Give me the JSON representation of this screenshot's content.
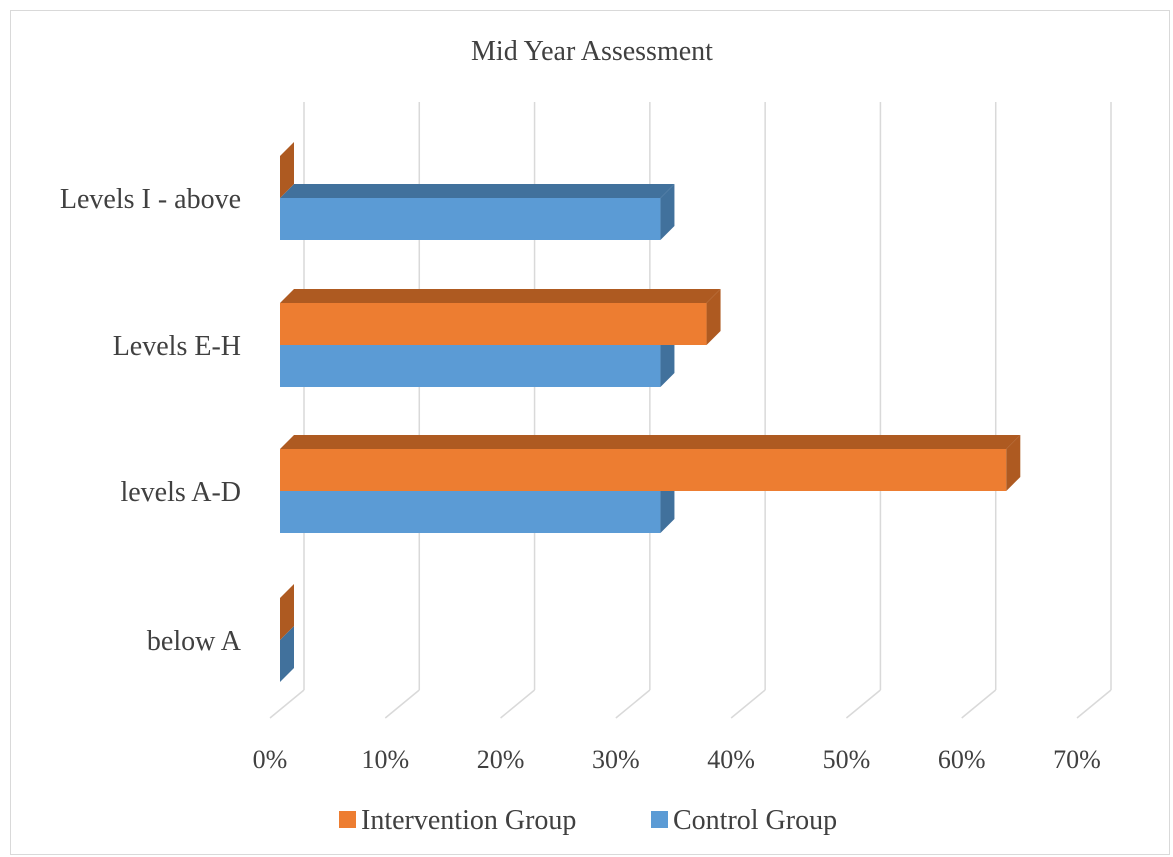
{
  "chart_data": {
    "type": "bar",
    "orientation": "horizontal",
    "style": "3d-clustered-bar",
    "title": "Mid Year Assessment",
    "categories": [
      "below A",
      "levels A-D",
      "Levels E-H",
      "Levels I - above"
    ],
    "series": [
      {
        "name": "Control Group",
        "values": [
          0,
          0.33,
          0.33,
          0.33
        ],
        "color": "#5b9bd5",
        "depth_color": "#41719c"
      },
      {
        "name": "Intervention Group",
        "values": [
          0,
          0.63,
          0.37,
          0
        ],
        "color": "#ed7d31",
        "depth_color": "#ae5a21"
      }
    ],
    "x_axis": {
      "ticks": [
        "0%",
        "10%",
        "20%",
        "30%",
        "40%",
        "50%",
        "60%",
        "70%"
      ],
      "range": [
        0,
        0.7
      ],
      "format": "percent"
    },
    "gridlines": true,
    "legend": {
      "position": "bottom",
      "entries": [
        "Intervention Group",
        "Control Group"
      ]
    }
  }
}
